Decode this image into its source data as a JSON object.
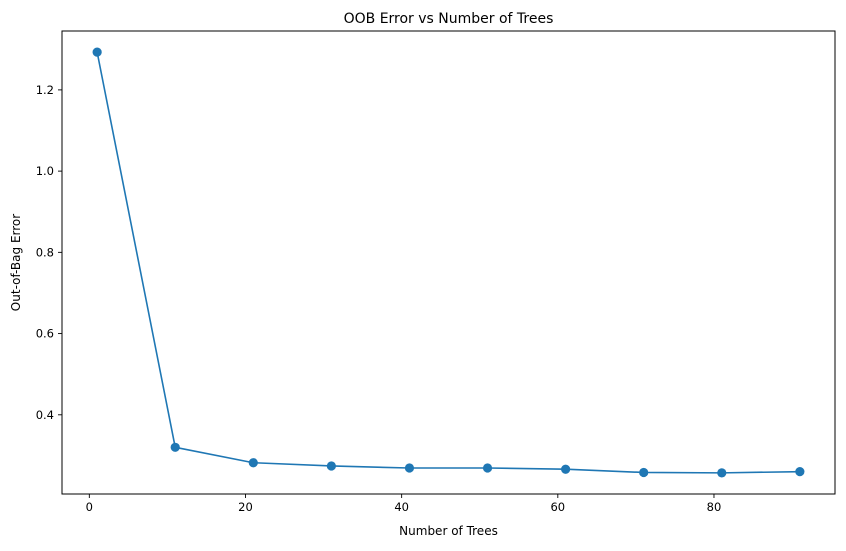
{
  "chart_data": {
    "type": "line",
    "title": "OOB Error vs Number of Trees",
    "xlabel": "Number of Trees",
    "ylabel": "Out-of-Bag Error",
    "x": [
      1,
      11,
      21,
      31,
      41,
      51,
      61,
      71,
      81,
      91
    ],
    "series": [
      {
        "values": [
          1.293,
          0.32,
          0.282,
          0.274,
          0.269,
          0.269,
          0.266,
          0.258,
          0.257,
          0.26
        ],
        "color": "#1f77b4",
        "marker": "circle"
      }
    ],
    "xticks": [
      0,
      20,
      40,
      60,
      80
    ],
    "xtick_labels": [
      "0",
      "20",
      "40",
      "60",
      "80"
    ],
    "yticks": [
      0.4,
      0.6,
      0.8,
      1.0,
      1.2
    ],
    "ytick_labels": [
      "0.4",
      "0.6",
      "0.8",
      "1.0",
      "1.2"
    ],
    "xlim": [
      -3.5,
      95.5
    ],
    "ylim": [
      0.205,
      1.345
    ],
    "grid": false,
    "legend": "none"
  }
}
